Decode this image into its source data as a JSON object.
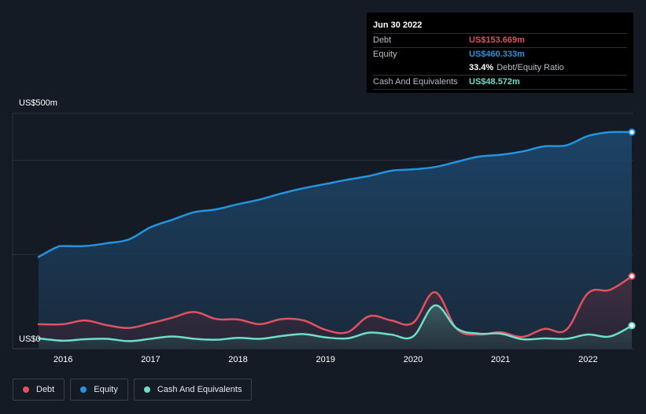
{
  "tooltip": {
    "date": "Jun 30 2022",
    "debt_label": "Debt",
    "debt_value": "US$153.669m",
    "equity_label": "Equity",
    "equity_value": "US$460.333m",
    "ratio_value": "33.4%",
    "ratio_label": "Debt/Equity Ratio",
    "cash_label": "Cash And Equivalents",
    "cash_value": "US$48.572m"
  },
  "colors": {
    "debt": "#e05260",
    "equity": "#2394df",
    "cash": "#6ddfc9",
    "background": "#151b24"
  },
  "legend": {
    "debt": "Debt",
    "equity": "Equity",
    "cash": "Cash And Equivalents"
  },
  "chart_data": {
    "type": "area",
    "title": "",
    "ylabel_top": "US$500m",
    "ylabel_bottom": "US$0",
    "ylim": [
      0,
      500
    ],
    "xlim": [
      2015.72,
      2022.5
    ],
    "x_ticks": [
      "2016",
      "2017",
      "2018",
      "2019",
      "2020",
      "2021",
      "2022"
    ],
    "x_tick_values": [
      2016,
      2017,
      2018,
      2019,
      2020,
      2021,
      2022
    ],
    "series": [
      {
        "name": "Equity",
        "x": [
          2015.72,
          2015.92,
          2016.0,
          2016.25,
          2016.5,
          2016.75,
          2017.0,
          2017.25,
          2017.5,
          2017.75,
          2018.0,
          2018.25,
          2018.5,
          2018.75,
          2019.0,
          2019.25,
          2019.5,
          2019.75,
          2020.0,
          2020.25,
          2020.5,
          2020.75,
          2021.0,
          2021.25,
          2021.5,
          2021.75,
          2022.0,
          2022.25,
          2022.5
        ],
        "values": [
          195,
          215,
          218,
          218,
          224,
          232,
          258,
          274,
          290,
          296,
          307,
          317,
          330,
          341,
          350,
          359,
          367,
          378,
          381,
          386,
          397,
          408,
          412,
          419,
          430,
          432,
          452,
          460,
          460
        ]
      },
      {
        "name": "Debt",
        "x": [
          2015.72,
          2016.0,
          2016.25,
          2016.5,
          2016.75,
          2017.0,
          2017.25,
          2017.5,
          2017.75,
          2018.0,
          2018.25,
          2018.5,
          2018.75,
          2019.0,
          2019.25,
          2019.5,
          2019.75,
          2020.0,
          2020.25,
          2020.5,
          2020.75,
          2021.0,
          2021.25,
          2021.5,
          2021.75,
          2022.0,
          2022.25,
          2022.5
        ],
        "values": [
          52,
          52,
          60,
          50,
          44,
          54,
          66,
          78,
          63,
          62,
          52,
          63,
          60,
          40,
          35,
          69,
          60,
          55,
          120,
          42,
          30,
          35,
          25,
          42,
          40,
          118,
          125,
          154
        ]
      },
      {
        "name": "Cash And Equivalents",
        "x": [
          2015.72,
          2016.0,
          2016.25,
          2016.5,
          2016.75,
          2017.0,
          2017.25,
          2017.5,
          2017.75,
          2018.0,
          2018.25,
          2018.5,
          2018.75,
          2019.0,
          2019.25,
          2019.5,
          2019.75,
          2020.0,
          2020.25,
          2020.5,
          2020.75,
          2021.0,
          2021.25,
          2021.5,
          2021.75,
          2022.0,
          2022.25,
          2022.5
        ],
        "values": [
          22,
          17,
          20,
          21,
          16,
          21,
          26,
          21,
          19,
          23,
          21,
          27,
          31,
          24,
          22,
          34,
          30,
          26,
          92,
          43,
          32,
          32,
          20,
          22,
          21,
          30,
          26,
          49
        ]
      }
    ]
  }
}
